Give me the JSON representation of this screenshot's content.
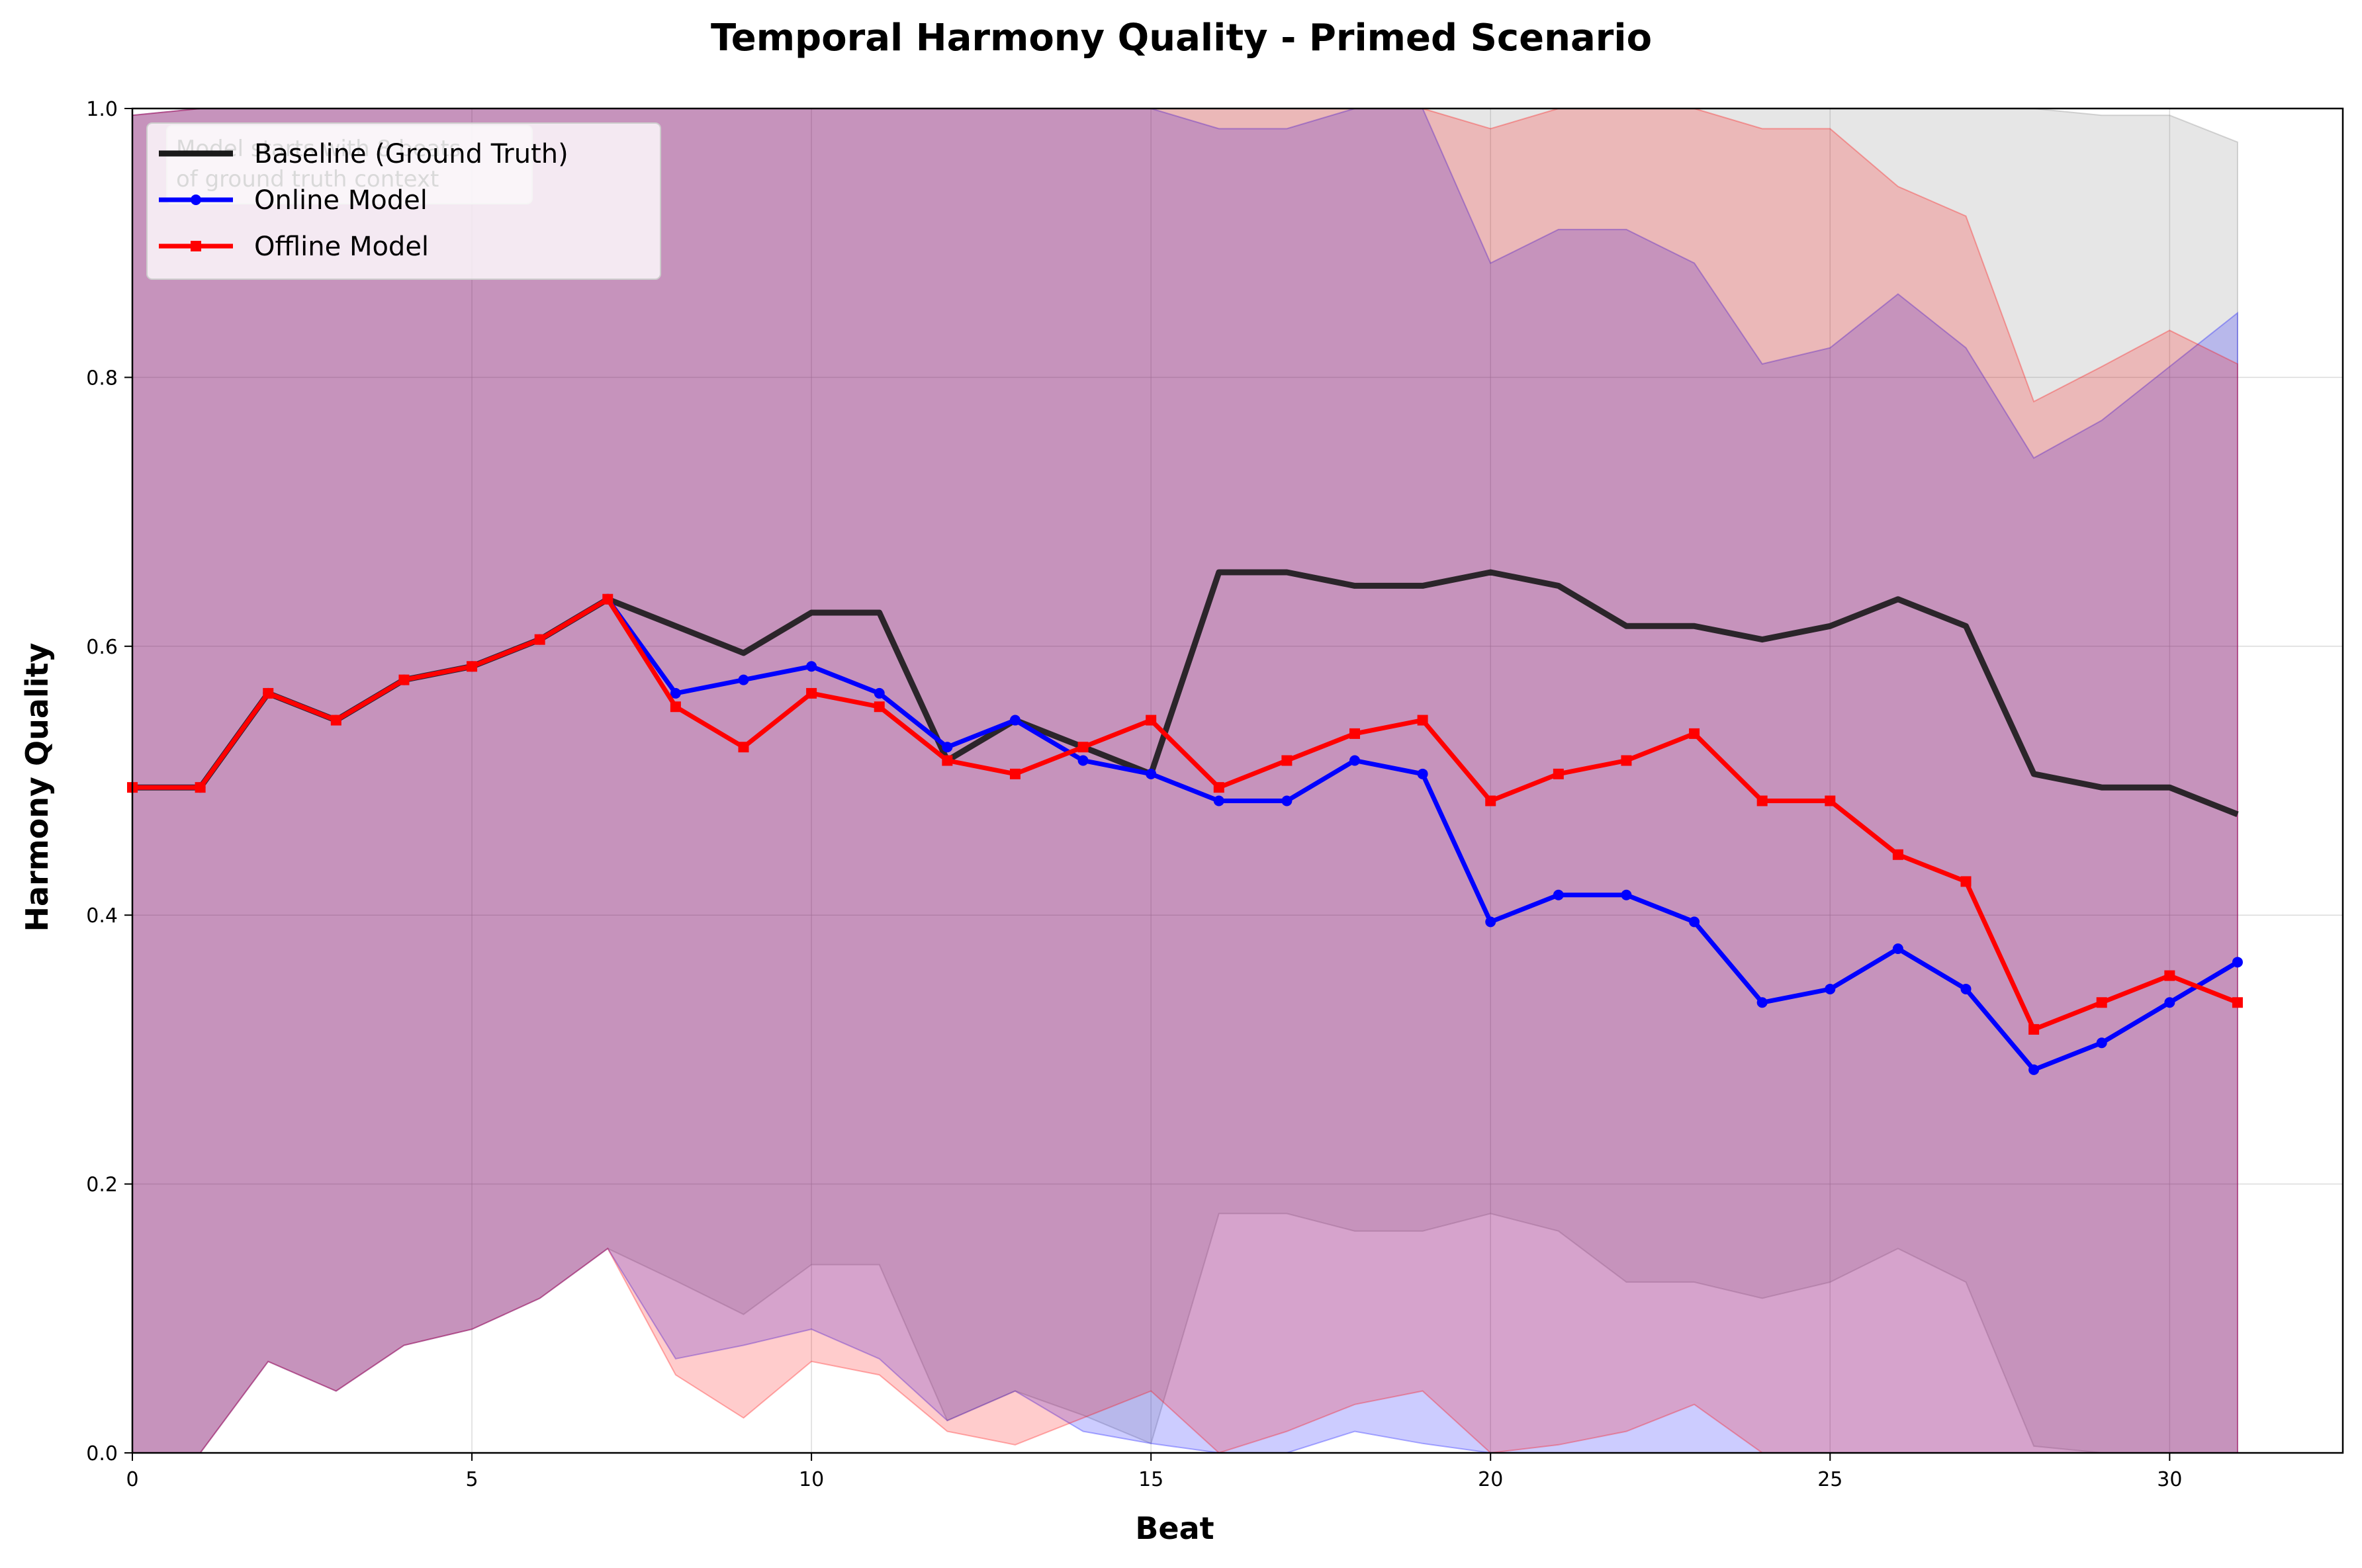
{
  "chart_data": {
    "type": "line",
    "title": "Temporal Harmony Quality - Primed Scenario",
    "xlabel": "Beat",
    "ylabel": "Harmony Quality",
    "xlim": [
      0,
      32.55
    ],
    "ylim": [
      0,
      1.0
    ],
    "xticks": [
      "0",
      "5",
      "10",
      "15",
      "20",
      "25",
      "30"
    ],
    "yticks": [
      "0.0",
      "0.2",
      "0.4",
      "0.6",
      "0.8",
      "1.0"
    ],
    "grid": true,
    "legend_position": "upper-left",
    "annotation": "Model starts with 8 beats of ground truth context",
    "x": [
      0,
      1,
      2,
      3,
      4,
      5,
      6,
      7,
      8,
      9,
      10,
      11,
      12,
      13,
      14,
      15,
      16,
      17,
      18,
      19,
      20,
      21,
      22,
      23,
      24,
      25,
      26,
      27,
      28,
      29,
      30,
      31
    ],
    "series": [
      {
        "name": "Baseline (Ground Truth)",
        "color": "#1a1a1a",
        "band_color": "#808080",
        "marker": "none",
        "values": [
          0.495,
          0.495,
          0.565,
          0.545,
          0.575,
          0.585,
          0.605,
          0.635,
          0.615,
          0.595,
          0.625,
          0.625,
          0.515,
          0.545,
          0.525,
          0.505,
          0.655,
          0.655,
          0.645,
          0.645,
          0.655,
          0.645,
          0.615,
          0.615,
          0.605,
          0.615,
          0.635,
          0.615,
          0.505,
          0.495,
          0.495,
          0.475
        ],
        "lower": [
          0.0,
          0.0,
          0.068,
          0.046,
          0.08,
          0.092,
          0.115,
          0.152,
          0.128,
          0.103,
          0.14,
          0.14,
          0.024,
          0.046,
          0.028,
          0.007,
          0.178,
          0.178,
          0.165,
          0.165,
          0.178,
          0.165,
          0.127,
          0.127,
          0.115,
          0.127,
          0.152,
          0.127,
          0.005,
          0.0,
          0.0,
          0.0
        ],
        "upper": [
          0.995,
          1.0,
          1.0,
          1.0,
          1.0,
          1.0,
          1.0,
          1.0,
          1.0,
          1.0,
          1.0,
          1.0,
          1.0,
          1.0,
          1.0,
          1.0,
          1.0,
          1.0,
          1.0,
          1.0,
          1.0,
          1.0,
          1.0,
          1.0,
          1.0,
          1.0,
          1.0,
          1.0,
          1.0,
          0.995,
          0.995,
          0.975
        ]
      },
      {
        "name": "Online Model",
        "color": "#0000ff",
        "band_color": "#0000ff",
        "marker": "circle",
        "values": [
          0.495,
          0.495,
          0.565,
          0.545,
          0.575,
          0.585,
          0.605,
          0.635,
          0.565,
          0.575,
          0.585,
          0.565,
          0.525,
          0.545,
          0.515,
          0.505,
          0.485,
          0.485,
          0.515,
          0.505,
          0.395,
          0.415,
          0.415,
          0.395,
          0.335,
          0.345,
          0.375,
          0.345,
          0.285,
          0.305,
          0.335,
          0.365
        ],
        "lower": [
          0.0,
          0.0,
          0.068,
          0.046,
          0.08,
          0.092,
          0.115,
          0.152,
          0.07,
          0.08,
          0.092,
          0.07,
          0.024,
          0.046,
          0.016,
          0.007,
          0.0,
          0.0,
          0.016,
          0.007,
          0.0,
          0.0,
          0.0,
          0.0,
          0.0,
          0.0,
          0.0,
          0.0,
          0.0,
          0.0,
          0.0,
          0.0
        ],
        "upper": [
          0.995,
          1.0,
          1.0,
          1.0,
          1.0,
          1.0,
          1.0,
          1.0,
          1.0,
          1.0,
          1.0,
          1.0,
          1.0,
          1.0,
          1.0,
          1.0,
          0.985,
          0.985,
          1.0,
          1.0,
          0.885,
          0.91,
          0.91,
          0.885,
          0.81,
          0.822,
          0.862,
          0.822,
          0.74,
          0.768,
          0.808,
          0.848
        ]
      },
      {
        "name": "Offline Model",
        "color": "#ff0000",
        "band_color": "#ff0000",
        "marker": "square",
        "values": [
          0.495,
          0.495,
          0.565,
          0.545,
          0.575,
          0.585,
          0.605,
          0.635,
          0.555,
          0.525,
          0.565,
          0.555,
          0.515,
          0.505,
          0.525,
          0.545,
          0.495,
          0.515,
          0.535,
          0.545,
          0.485,
          0.505,
          0.515,
          0.535,
          0.485,
          0.485,
          0.445,
          0.425,
          0.315,
          0.335,
          0.355,
          0.335
        ],
        "lower": [
          0.0,
          0.0,
          0.068,
          0.046,
          0.08,
          0.092,
          0.115,
          0.152,
          0.058,
          0.026,
          0.068,
          0.058,
          0.016,
          0.006,
          0.026,
          0.046,
          0.0,
          0.016,
          0.036,
          0.046,
          0.0,
          0.006,
          0.016,
          0.036,
          0.0,
          0.0,
          0.0,
          0.0,
          0.0,
          0.0,
          0.0,
          0.0
        ],
        "upper": [
          0.995,
          1.0,
          1.0,
          1.0,
          1.0,
          1.0,
          1.0,
          1.0,
          1.0,
          1.0,
          1.0,
          1.0,
          1.0,
          1.0,
          1.0,
          1.0,
          1.0,
          1.0,
          1.0,
          1.0,
          0.985,
          1.0,
          1.0,
          1.0,
          0.985,
          0.985,
          0.942,
          0.92,
          0.782,
          0.808,
          0.835,
          0.81
        ]
      }
    ]
  }
}
